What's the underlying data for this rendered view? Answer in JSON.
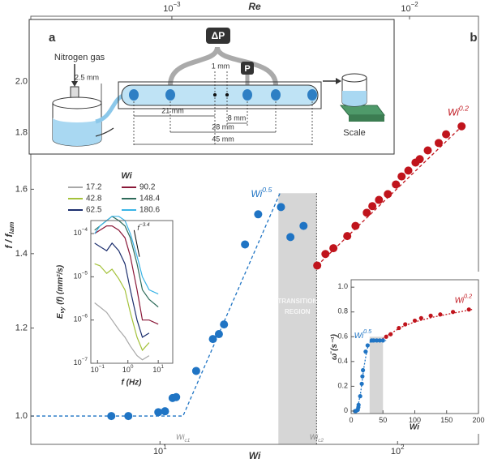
{
  "chart_data": [
    {
      "type": "scatter",
      "panel_label": "b",
      "xlabel": "Wi",
      "x2label": "Re",
      "ylabel": "f / f",
      "ylabel_sub": "lam",
      "xscale": "log",
      "yscale": "log",
      "xlim": [
        2.86,
        219
      ],
      "ylim": [
        0.943,
        2.29
      ],
      "x2lim": [
        0.000255,
        0.0195
      ],
      "xticks": [
        {
          "value": 10,
          "base": "10",
          "exponent": "1"
        },
        {
          "value": 100,
          "base": "10",
          "exponent": "2"
        }
      ],
      "x2ticks": [
        {
          "value": 0.001,
          "base": "10",
          "exponent": "−3"
        },
        {
          "value": 0.01,
          "base": "10",
          "exponent": "−2"
        }
      ],
      "yticks": [
        {
          "value": 1,
          "label": "1.0"
        },
        {
          "value": 1.2,
          "label": "1.2"
        },
        {
          "value": 1.4,
          "label": "1.4"
        },
        {
          "value": 1.6,
          "label": "1.6"
        },
        {
          "value": 1.8,
          "label": "1.8"
        },
        {
          "value": 2,
          "label": "2.0"
        }
      ],
      "series": [
        {
          "color": "#1f74c4",
          "x": [
            6.24,
            7.36,
            9.84,
            10.5,
            11.3,
            11.7,
            14.2,
            16.7,
            17.7,
            18.6,
            22.8,
            25.9,
            32.3,
            35.4,
            40.2
          ],
          "values": [
            1.0,
            1.0,
            1.008,
            1.01,
            1.038,
            1.04,
            1.098,
            1.173,
            1.185,
            1.209,
            1.427,
            1.519,
            1.542,
            1.449,
            1.483
          ]
        },
        {
          "color": "#c0141c",
          "x": [
            45.9,
            49.7,
            53.7,
            61.4,
            66.5,
            74.2,
            78.3,
            83.5,
            91.0,
            98.4,
            104,
            111,
            119,
            124,
            134,
            149,
            160,
            186
          ],
          "values": [
            1.366,
            1.399,
            1.416,
            1.452,
            1.483,
            1.524,
            1.545,
            1.565,
            1.584,
            1.616,
            1.643,
            1.663,
            1.691,
            1.703,
            1.734,
            1.761,
            1.793,
            1.823
          ]
        }
      ],
      "fits": [
        {
          "color": "#1f74c4",
          "label": {
            "base": "Wi",
            "exponent": "0.5"
          },
          "x": [
            2.86,
            12.5,
            32
          ],
          "values": [
            1,
            1,
            1.587
          ]
        },
        {
          "color": "#c0141c",
          "label": {
            "base": "Wi",
            "exponent": "0.2"
          },
          "x": [
            45.9,
            190
          ],
          "values": [
            1.366,
            1.83
          ]
        }
      ],
      "shaded": {
        "x": [
          31.5,
          45.6
        ],
        "ytop": 1.587,
        "label": [
          "TRANSITION",
          "REGION"
        ]
      },
      "markers": [
        {
          "x": 12.5,
          "base": "Wi",
          "sub": "c1",
          "dotted_line": false
        },
        {
          "x": 45.6,
          "base": "Wi",
          "sub": "c2",
          "dotted_line": true
        }
      ]
    },
    {
      "type": "line",
      "legend_title": "Wi",
      "xlabel": "f (Hz)",
      "ylabel": "E",
      "ylabel_sub": "vy",
      "ylabel_rest": " (f) (mm²/s)",
      "xscale": "log",
      "yscale": "log",
      "xlim": [
        0.06,
        30
      ],
      "ylim": [
        1e-07,
        0.0002
      ],
      "xticks": [
        {
          "value": 0.1,
          "base": "10",
          "exponent": "−1"
        },
        {
          "value": 1,
          "base": "10",
          "exponent": "0"
        },
        {
          "value": 10,
          "base": "10",
          "exponent": "1"
        }
      ],
      "yticks": [
        {
          "value": 1e-07,
          "base": "10",
          "exponent": "−7"
        },
        {
          "value": 1e-06,
          "base": "10",
          "exponent": "−6"
        },
        {
          "value": 1e-05,
          "base": "10",
          "exponent": "−5"
        },
        {
          "value": 0.0001,
          "base": "10",
          "exponent": "−4"
        }
      ],
      "series": [
        {
          "name": "17.2",
          "color": "#a8a8a8",
          "x": [
            0.08,
            0.12,
            0.2,
            0.3,
            0.5,
            0.8,
            1.2,
            2,
            3,
            5
          ],
          "values": [
            2.5e-06,
            2e-06,
            1.5e-06,
            1e-06,
            6e-07,
            4e-07,
            2.5e-07,
            1.5e-07,
            1.2e-07,
            1.5e-07
          ]
        },
        {
          "name": "42.8",
          "color": "#a4c23a",
          "x": [
            0.08,
            0.12,
            0.2,
            0.3,
            0.5,
            0.8,
            1.2,
            2,
            3,
            5
          ],
          "values": [
            2e-05,
            1.8e-05,
            1.2e-05,
            1.5e-05,
            9e-06,
            5e-06,
            1.5e-06,
            4e-07,
            2e-07,
            3e-07
          ]
        },
        {
          "name": "62.5",
          "color": "#1c2f6e",
          "x": [
            0.08,
            0.12,
            0.2,
            0.3,
            0.5,
            0.8,
            1.2,
            2,
            3,
            5
          ],
          "values": [
            6e-05,
            5e-05,
            4e-05,
            6e-05,
            4e-05,
            2e-05,
            5e-06,
            1e-06,
            4e-07,
            5e-07
          ]
        },
        {
          "name": "90.2",
          "color": "#8a1838",
          "x": [
            0.08,
            0.12,
            0.2,
            0.3,
            0.5,
            0.8,
            1.2,
            2,
            3,
            5,
            10
          ],
          "values": [
            0.0001,
            0.00012,
            0.00015,
            0.00015,
            0.00012,
            8e-05,
            3e-05,
            5e-06,
            1e-06,
            1e-06,
            8e-07
          ]
        },
        {
          "name": "148.4",
          "color": "#2f6b5a",
          "x": [
            0.08,
            0.12,
            0.2,
            0.3,
            0.5,
            0.8,
            1.2,
            2,
            3,
            5,
            10
          ],
          "values": [
            0.00012,
            0.00015,
            0.0002,
            0.00025,
            0.0002,
            0.00015,
            8e-05,
            2e-05,
            5e-06,
            3e-06,
            2e-06
          ]
        },
        {
          "name": "180.6",
          "color": "#3ab4e6",
          "x": [
            0.08,
            0.12,
            0.2,
            0.3,
            0.5,
            0.8,
            1.2,
            2,
            3,
            5,
            10
          ],
          "values": [
            0.0001,
            0.00015,
            0.0002,
            0.00025,
            0.00025,
            0.0002,
            0.0001,
            3e-05,
            1e-05,
            5e-06,
            4e-06
          ]
        }
      ],
      "slope": {
        "label": {
          "base": "f",
          "exponent": "−3.4"
        },
        "x": [
          1.6,
          2.4
        ],
        "values": [
          0.00012,
          2.9e-05
        ]
      }
    },
    {
      "type": "scatter",
      "xlabel": "Wi",
      "ylabel": "ω̄ (s⁻¹)",
      "xscale": "linear",
      "yscale": "linear",
      "xlim": [
        0,
        200
      ],
      "ylim": [
        -0.02,
        1.06
      ],
      "xticks": [
        0,
        50,
        100,
        150,
        200
      ],
      "yticks": [
        0,
        0.2,
        0.4,
        0.6,
        0.8,
        {
          "value": 1,
          "label": "1.0"
        }
      ],
      "series": [
        {
          "color": "#1f74c4",
          "x": [
            6,
            7.4,
            9.8,
            10.5,
            11.3,
            11.7,
            14.2,
            16.7,
            17.7,
            18.6,
            22.8,
            25.9,
            32.3,
            35.4,
            40.2,
            45,
            50
          ],
          "values": [
            0,
            0,
            0.01,
            0.01,
            0.03,
            0.05,
            0.12,
            0.22,
            0.28,
            0.33,
            0.48,
            0.53,
            0.57,
            0.57,
            0.57,
            0.57,
            0.57
          ]
        },
        {
          "color": "#c0141c",
          "x": [
            55,
            62,
            75,
            85,
            100,
            110,
            125,
            140,
            160,
            185
          ],
          "values": [
            0.6,
            0.62,
            0.67,
            0.7,
            0.73,
            0.75,
            0.77,
            0.78,
            0.8,
            0.82
          ]
        }
      ],
      "fits": [
        {
          "color": "#1f74c4",
          "label": {
            "base": "Wi",
            "exponent": "0.5"
          },
          "x": [
            5,
            10,
            15,
            20,
            25,
            30,
            55
          ],
          "values": [
            0,
            0.02,
            0.15,
            0.35,
            0.5,
            0.56,
            0.57
          ]
        },
        {
          "color": "#c0141c",
          "label": {
            "base": "Wi",
            "exponent": "0.2"
          },
          "x": [
            45,
            60,
            80,
            100,
            130,
            160,
            190
          ],
          "values": [
            0.57,
            0.62,
            0.68,
            0.72,
            0.76,
            0.79,
            0.82
          ]
        }
      ],
      "shaded": {
        "x": [
          29,
          50
        ],
        "ytop": 0.6
      }
    }
  ],
  "schematic": {
    "panel_label": "a",
    "gas": "Nitrogen gas",
    "height": "2.5 mm",
    "dp": "ΔP",
    "gap": "1 mm",
    "p": "P",
    "d21": "21 mm",
    "d8": "8 mm",
    "d28": "28 mm",
    "d45": "45 mm",
    "scale": "Scale"
  }
}
